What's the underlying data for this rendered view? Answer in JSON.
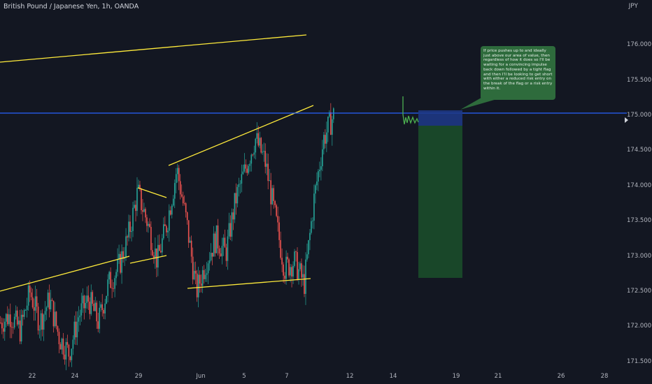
{
  "header": {
    "symbol_title": "British Pound / Japanese Yen, 1h, OANDA",
    "currency": "JPY"
  },
  "y_axis": {
    "ticks": [
      "176.000",
      "175.500",
      "175.000",
      "174.500",
      "174.000",
      "173.500",
      "173.000",
      "172.500",
      "172.000",
      "171.500"
    ]
  },
  "x_axis": {
    "ticks": [
      "22",
      "24",
      "29",
      "Jun",
      "5",
      "7",
      "12",
      "14",
      "19",
      "21",
      "26",
      "28"
    ]
  },
  "annotation": {
    "text": "If price pushes up to and ideally just above our area of value, then regardless of how it does so I'll be waiting for a convincing impulse back down followed by a tight flag and then I'll be looking to get short with either a reduced risk entry on the break of the flag or a risk entry within it."
  },
  "colors": {
    "background": "#131722",
    "up_candle": "#26a69a",
    "down_candle": "#ef5350",
    "trendline": "#ffeb3b",
    "level_line": "#2962ff",
    "stop_zone": "#1e3a8a",
    "target_zone": "#1b4d2a",
    "note_bg": "#2e6b3c"
  },
  "chart_data": {
    "type": "candlestick",
    "symbol": "GBPJPY",
    "timeframe": "1h",
    "y_range": [
      171.4,
      176.4
    ],
    "level_line": 175.0,
    "short_position": {
      "entry": 174.83,
      "stop": 175.07,
      "target": 172.68
    },
    "price_path": [
      172.2,
      172.3,
      172.1,
      172.6,
      172.2,
      172.5,
      172.0,
      171.8,
      172.3,
      172.5,
      172.2,
      172.7,
      172.9,
      173.3,
      173.9,
      173.5,
      173.0,
      173.5,
      174.2,
      173.5,
      172.6,
      173.0,
      173.3,
      173.1,
      173.8,
      174.2,
      174.6,
      174.3,
      173.6,
      172.9,
      173.0,
      172.7,
      173.8,
      174.6,
      174.9
    ]
  }
}
